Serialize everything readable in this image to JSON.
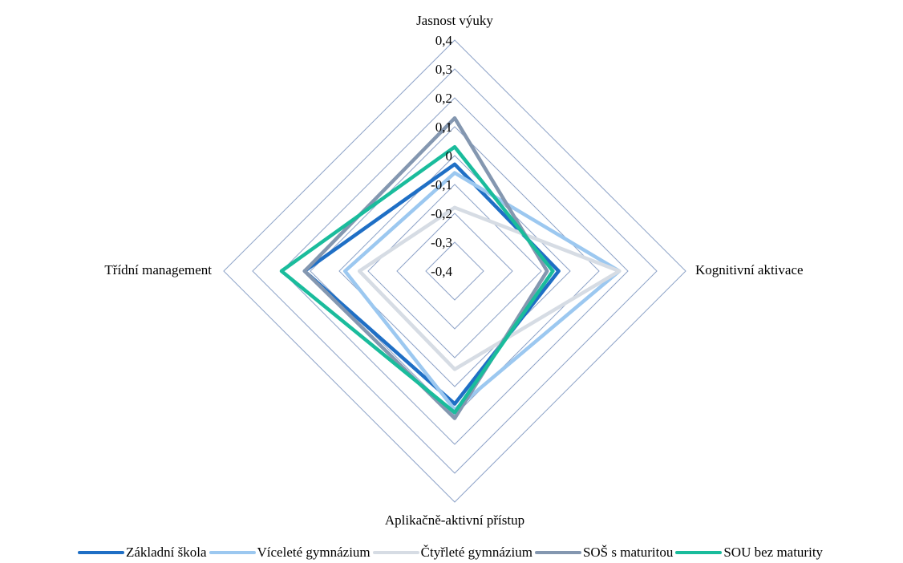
{
  "chart_data": {
    "type": "radar",
    "title": "",
    "axes": [
      "Jasnost výuky",
      "Kognitivní aktivace",
      "Aplikačně-aktivní přístup",
      "Třídní management"
    ],
    "ticks": [
      "0,4",
      "0,3",
      "0,2",
      "0,1",
      "0",
      "-0,1",
      "-0,2",
      "-0,3",
      "-0,4"
    ],
    "rlim": [
      -0.4,
      0.4
    ],
    "grid": true,
    "legend_position": "bottom",
    "series": [
      {
        "name": "Základní škola",
        "color": "#1F6FC5",
        "values": [
          -0.03,
          -0.04,
          0.06,
          0.12
        ]
      },
      {
        "name": "Víceleté gymnázium",
        "color": "#9CC8F0",
        "values": [
          -0.06,
          0.17,
          0.08,
          -0.02
        ]
      },
      {
        "name": "Čtyřleté gymnázium",
        "color": "#D6DCE4",
        "values": [
          -0.18,
          0.17,
          -0.06,
          -0.07
        ]
      },
      {
        "name": "SOŠ s maturitou",
        "color": "#8497B0",
        "values": [
          0.13,
          -0.08,
          0.11,
          0.12
        ]
      },
      {
        "name": "SOU bez maturity",
        "color": "#1ABC9C",
        "values": [
          0.03,
          -0.06,
          0.09,
          0.2
        ]
      }
    ]
  }
}
